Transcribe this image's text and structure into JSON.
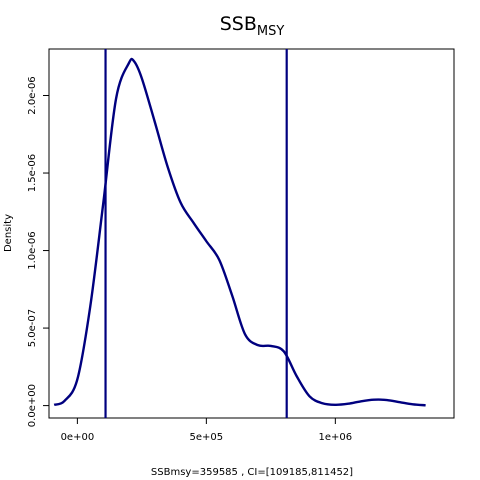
{
  "chart_data": {
    "type": "line",
    "title": "SSB",
    "title_subscript": "MSY",
    "xlabel": "SSBmsy=359585 , CI=[109185,811452]",
    "ylabel": "Density",
    "xlim": [
      -110000,
      1460000
    ],
    "ylim": [
      -8e-08,
      2.3e-06
    ],
    "x_ticks": [
      0,
      500000,
      1000000
    ],
    "x_tick_labels": [
      "0e+00",
      "5e+05",
      "1e+06"
    ],
    "y_ticks": [
      0,
      5e-07,
      1e-06,
      1.5e-06,
      2e-06
    ],
    "y_tick_labels": [
      "0.0e+00",
      "5.0e-07",
      "1.0e-06",
      "1.5e-06",
      "2.0e-06"
    ],
    "grid": false,
    "line_color": "#00007f",
    "vertical_lines": [
      109185,
      811452
    ],
    "series": [
      {
        "x": [
          -90000,
          -50000,
          0,
          50000,
          100000,
          150000,
          200000,
          220000,
          250000,
          300000,
          350000,
          400000,
          450000,
          500000,
          550000,
          600000,
          650000,
          700000,
          750000,
          800000,
          850000,
          900000,
          950000,
          1000000,
          1050000,
          1100000,
          1150000,
          1200000,
          1250000,
          1300000,
          1350000
        ],
        "y": [
          5e-09,
          3e-08,
          1.7e-07,
          6.4e-07,
          1.3e-06,
          1.98e-06,
          2.21e-06,
          2.22e-06,
          2.11e-06,
          1.83e-06,
          1.54e-06,
          1.31e-06,
          1.18e-06,
          1.06e-06,
          9.4e-07,
          7.1e-07,
          4.6e-07,
          3.9e-07,
          3.85e-07,
          3.5e-07,
          1.9e-07,
          6e-08,
          1.5e-08,
          5e-09,
          1.2e-08,
          2.8e-08,
          3.8e-08,
          3.6e-08,
          2.2e-08,
          8e-09,
          2e-09
        ]
      }
    ]
  }
}
